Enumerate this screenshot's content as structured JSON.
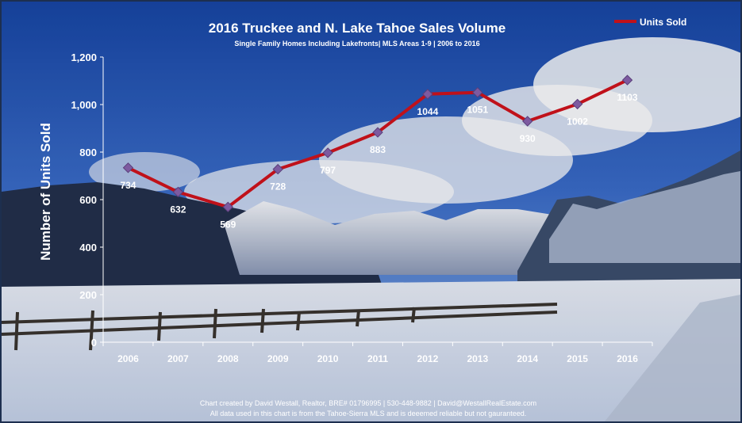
{
  "chart_data": {
    "type": "line",
    "title": "2016 Truckee and N. Lake Tahoe Sales Volume",
    "subtitle": "Single Family Homes Including Lakefronts| MLS Areas 1-9 | 2006 to 2016",
    "ylabel": "Number of Units Sold",
    "xlabel": "",
    "categories": [
      "2006",
      "2007",
      "2008",
      "2009",
      "2010",
      "2011",
      "2012",
      "2013",
      "2014",
      "2015",
      "2016"
    ],
    "series": [
      {
        "name": "Units Sold",
        "values": [
          734,
          632,
          569,
          728,
          797,
          883,
          1044,
          1051,
          930,
          1002,
          1103
        ],
        "color": "#c0111a",
        "marker_color": "#7d5aa0"
      }
    ],
    "ylim": [
      0,
      1200
    ],
    "yticks": [
      "0",
      "200",
      "400",
      "600",
      "800",
      "1,000",
      "1,200"
    ],
    "data_labels": [
      "734",
      "632",
      "569",
      "728",
      "797",
      "883",
      "1044",
      "1051",
      "930",
      "1002",
      "1103"
    ],
    "legend_position": "top-right",
    "grid": false
  },
  "footer": {
    "line1": "Chart created by David Westall, Realtor, BRE# 01796995 | 530-448-9882 | David@WestallRealEstate.com",
    "line2": "All data used in this chart is from the Tahoe-Sierra MLS and is deeemed reliable but  not gauranteed."
  }
}
